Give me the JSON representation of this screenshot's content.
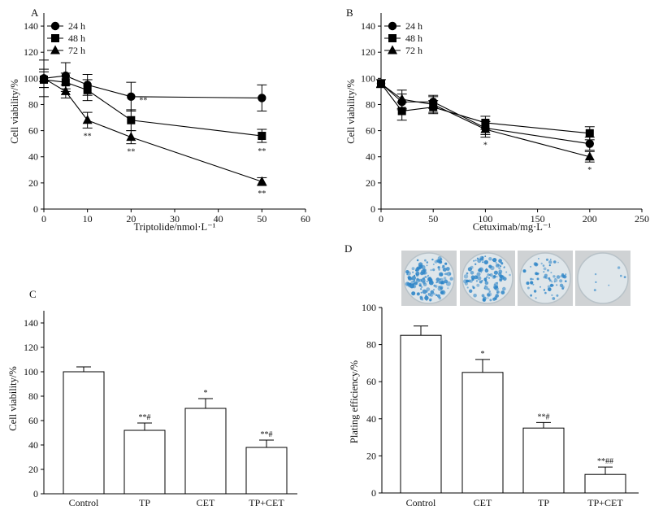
{
  "figure": {
    "panels": [
      "A",
      "B",
      "C",
      "D"
    ],
    "colors": {
      "ink": "#000000",
      "dish_bg": "#cfd2d4",
      "dish_stain": "#2f86c8"
    }
  },
  "chart_data": [
    {
      "panel": "A",
      "type": "line",
      "xlabel": "Triptolide/nmol·L⁻¹",
      "ylabel": "Cell viability/%",
      "xlim": [
        0,
        60
      ],
      "ylim": [
        0,
        150
      ],
      "xticks": [
        0,
        10,
        20,
        30,
        40,
        50,
        60
      ],
      "yticks": [
        0,
        20,
        40,
        60,
        80,
        100,
        120,
        140
      ],
      "legend_position": "top-left",
      "series": [
        {
          "name": "24 h",
          "marker": "circle",
          "x": [
            0,
            5,
            10,
            20,
            50
          ],
          "y": [
            100,
            102,
            95,
            86,
            85
          ],
          "err": [
            7,
            10,
            8,
            11,
            10
          ],
          "sig": [
            "",
            "",
            "",
            "",
            ""
          ]
        },
        {
          "name": "48 h",
          "marker": "square",
          "x": [
            0,
            5,
            10,
            20,
            50
          ],
          "y": [
            99,
            97,
            91,
            68,
            56
          ],
          "err": [
            6,
            7,
            8,
            8,
            5
          ],
          "sig": [
            "",
            "",
            "",
            "**",
            "**"
          ]
        },
        {
          "name": "72 h",
          "marker": "triangle",
          "x": [
            0,
            5,
            10,
            20,
            50
          ],
          "y": [
            100,
            90,
            68,
            55,
            21
          ],
          "err": [
            14,
            5,
            6,
            5,
            3
          ],
          "sig": [
            "",
            "",
            "**",
            "**",
            "**"
          ]
        }
      ]
    },
    {
      "panel": "B",
      "type": "line",
      "xlabel": "Cetuximab/mg·L⁻¹",
      "ylabel": "Cell viability/%",
      "xlim": [
        0,
        250
      ],
      "ylim": [
        0,
        150
      ],
      "xticks": [
        0,
        50,
        100,
        150,
        200,
        250
      ],
      "yticks": [
        0,
        20,
        40,
        60,
        80,
        100,
        120,
        140
      ],
      "legend_position": "top-left",
      "series": [
        {
          "name": "24 h",
          "marker": "circle",
          "x": [
            0,
            20,
            50,
            100,
            200
          ],
          "y": [
            96,
            82,
            82,
            62,
            50
          ],
          "err": [
            3,
            6,
            5,
            5,
            5
          ],
          "sig": [
            "",
            "",
            "",
            "",
            ""
          ]
        },
        {
          "name": "48 h",
          "marker": "square",
          "x": [
            0,
            20,
            50,
            100,
            200
          ],
          "y": [
            96,
            75,
            78,
            66,
            58
          ],
          "err": [
            3,
            7,
            5,
            5,
            5
          ],
          "sig": [
            "",
            "",
            "",
            "",
            ""
          ]
        },
        {
          "name": "72 h",
          "marker": "triangle",
          "x": [
            0,
            20,
            50,
            100,
            200
          ],
          "y": [
            96,
            84,
            80,
            61,
            40
          ],
          "err": [
            3,
            7,
            6,
            6,
            4
          ],
          "sig": [
            "",
            "",
            "",
            "*",
            "*"
          ]
        }
      ]
    },
    {
      "panel": "C",
      "type": "bar",
      "ylabel": "Cell viability/%",
      "ylim": [
        0,
        150
      ],
      "yticks": [
        0,
        20,
        40,
        60,
        80,
        100,
        120,
        140
      ],
      "categories": [
        "Control",
        "TP",
        "CET",
        "TP+CET"
      ],
      "values": [
        100,
        52,
        70,
        38
      ],
      "errors": [
        4,
        6,
        8,
        6
      ],
      "sig": [
        "",
        "**#",
        "*",
        "**#"
      ]
    },
    {
      "panel": "D",
      "type": "bar",
      "ylabel": "Plating efficiency/%",
      "ylim": [
        0,
        100
      ],
      "yticks": [
        0,
        20,
        40,
        60,
        80,
        100
      ],
      "categories": [
        "Control",
        "CET",
        "TP",
        "TP+CET"
      ],
      "values": [
        85,
        65,
        35,
        10
      ],
      "errors": [
        5,
        7,
        3,
        4
      ],
      "sig": [
        "",
        "*",
        "**#",
        "**##"
      ],
      "colony_images": [
        "Control",
        "CET",
        "TP",
        "TP+CET"
      ],
      "colony_density": [
        1.0,
        0.8,
        0.45,
        0.05
      ]
    }
  ]
}
